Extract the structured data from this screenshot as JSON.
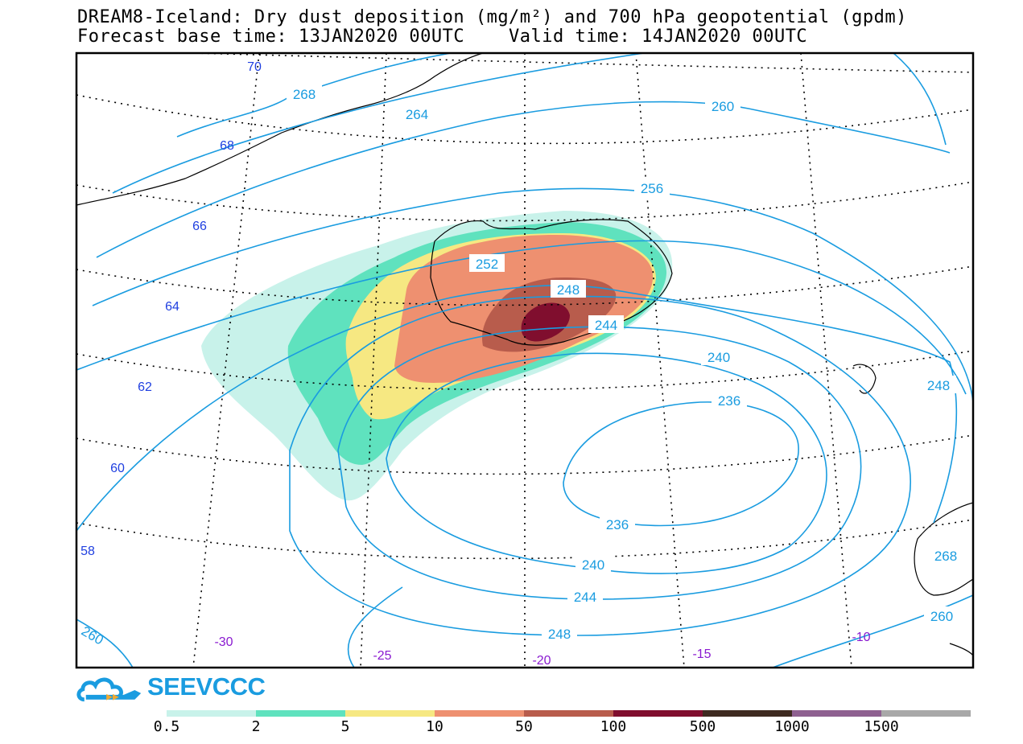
{
  "title": {
    "line1": "DREAM8-Iceland: Dry dust deposition (mg/m²) and 700 hPa geopotential (gpdm)",
    "line2": "Forecast base time: 13JAN2020 00UTC    Valid time: 14JAN2020 00UTC"
  },
  "logo": {
    "text": "SEEVCCC",
    "icon": "cloud-logo-icon",
    "color": "#1a9ce0"
  },
  "colorbar": {
    "colors": [
      "#c8f2ea",
      "#5fe2be",
      "#f6e882",
      "#ee9070",
      "#b85c4c",
      "#800e2e",
      "#3e2a20",
      "#8e6090",
      "#a8a8a8"
    ],
    "labels": [
      "0.5",
      "2",
      "5",
      "10",
      "50",
      "100",
      "500",
      "1000",
      "1500"
    ]
  },
  "latitude_labels": [
    "70",
    "68",
    "66",
    "64",
    "62",
    "60",
    "58"
  ],
  "longitude_labels": [
    "-30",
    "-25",
    "-20",
    "-15",
    "-10"
  ],
  "contour_labels": [
    "268",
    "264",
    "260",
    "256",
    "252",
    "248",
    "244",
    "240",
    "236",
    "236",
    "240",
    "244",
    "248",
    "248",
    "260",
    "260",
    "268"
  ],
  "colors": {
    "contour": "#1a9ce0",
    "lat_label": "#1f3fe0",
    "lon_label": "#8a1ad0"
  }
}
